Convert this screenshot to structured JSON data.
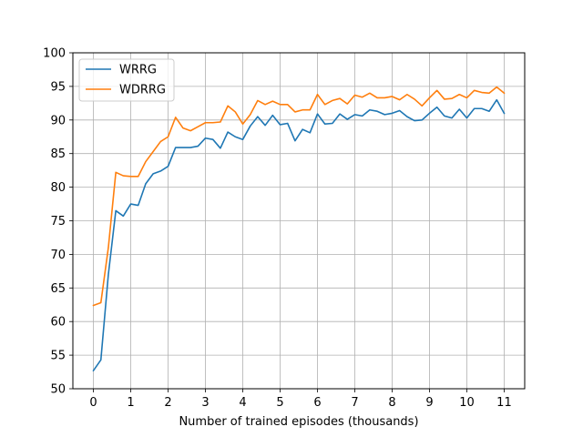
{
  "chart_data": {
    "type": "line",
    "title": "",
    "xlabel": "Number of trained episodes (thousands)",
    "ylabel": "",
    "xlim": [
      -0.55,
      11.55
    ],
    "ylim": [
      50,
      100
    ],
    "xticks": [
      0,
      1,
      2,
      3,
      4,
      5,
      6,
      7,
      8,
      9,
      10,
      11
    ],
    "yticks": [
      50,
      55,
      60,
      65,
      70,
      75,
      80,
      85,
      90,
      95,
      100
    ],
    "grid": true,
    "legend_position": "top-left",
    "x": [
      0,
      0.2,
      0.4,
      0.6,
      0.8,
      1.0,
      1.2,
      1.4,
      1.6,
      1.8,
      2.0,
      2.2,
      2.4,
      2.6,
      2.8,
      3.0,
      3.2,
      3.4,
      3.6,
      3.8,
      4.0,
      4.2,
      4.4,
      4.6,
      4.8,
      5.0,
      5.2,
      5.4,
      5.6,
      5.8,
      6.0,
      6.2,
      6.4,
      6.6,
      6.8,
      7.0,
      7.2,
      7.4,
      7.6,
      7.8,
      8.0,
      8.2,
      8.4,
      8.6,
      8.8,
      9.0,
      9.2,
      9.4,
      9.6,
      9.8,
      10.0,
      10.2,
      10.4,
      10.6,
      10.8,
      11.0
    ],
    "series": [
      {
        "name": "WRRG",
        "color": "#1f77b4",
        "values": [
          52.7,
          54.3,
          67.0,
          76.5,
          75.7,
          77.5,
          77.3,
          80.5,
          82.0,
          82.4,
          83.1,
          85.9,
          85.9,
          85.9,
          86.1,
          87.3,
          87.1,
          85.8,
          88.2,
          87.5,
          87.1,
          89.1,
          90.5,
          89.2,
          90.7,
          89.3,
          89.5,
          86.9,
          88.6,
          88.1,
          90.9,
          89.4,
          89.5,
          90.9,
          90.1,
          90.8,
          90.6,
          91.5,
          91.3,
          90.8,
          91.0,
          91.4,
          90.5,
          89.9,
          90.0,
          91.0,
          91.9,
          90.6,
          90.3,
          91.6,
          90.3,
          91.7,
          91.7,
          91.3,
          93.0,
          91.0
        ]
      },
      {
        "name": "WDRRG",
        "color": "#ff7f0e",
        "values": [
          62.4,
          62.8,
          71.0,
          82.2,
          81.7,
          81.6,
          81.6,
          83.8,
          85.3,
          86.8,
          87.5,
          90.4,
          88.8,
          88.4,
          89.0,
          89.6,
          89.6,
          89.7,
          92.1,
          91.2,
          89.4,
          90.8,
          92.9,
          92.3,
          92.8,
          92.3,
          92.3,
          91.2,
          91.5,
          91.5,
          93.8,
          92.3,
          92.9,
          93.2,
          92.4,
          93.7,
          93.4,
          94.0,
          93.3,
          93.3,
          93.5,
          93.0,
          93.8,
          93.1,
          92.1,
          93.3,
          94.4,
          93.1,
          93.2,
          93.8,
          93.3,
          94.4,
          94.1,
          94.0,
          94.9,
          94.0
        ]
      }
    ]
  }
}
